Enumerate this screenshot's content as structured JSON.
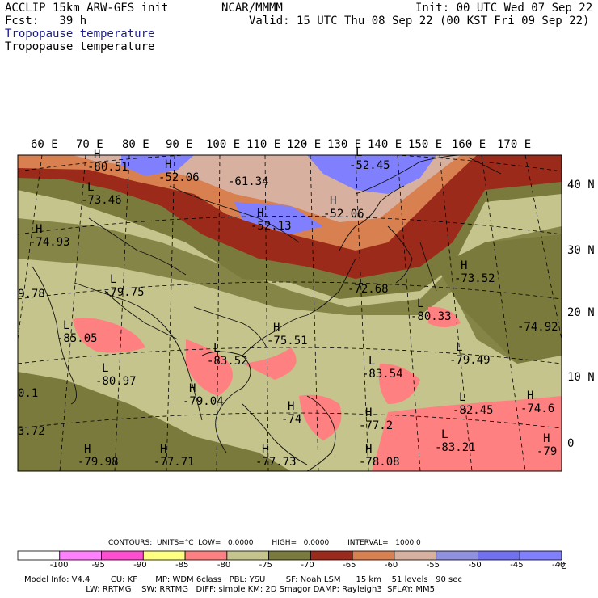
{
  "header": {
    "line1_left": "ACCLIP 15km ARW-GFS init",
    "line1_mid": "NCAR/MMMM",
    "line1_right": "Init: 00 UTC Wed 07 Sep 22",
    "line2_left": "Fcst:   39 h",
    "line2_right": "Valid: 15 UTC Thu 08 Sep 22 (00 KST Fri 09 Sep 22)",
    "title_blue": "Tropopause temperature",
    "title_black": "Tropopause temperature"
  },
  "map": {
    "lon_labels": [
      "60 E",
      "70 E",
      "80 E",
      "90 E",
      "100 E",
      "110 E",
      "120 E",
      "130 E",
      "140 E",
      "150 E",
      "160 E",
      "170 E"
    ],
    "lat_labels": [
      "40 N",
      "30 N",
      "20 N",
      "10 N",
      "0"
    ],
    "pressure_labels": [
      {
        "kind": "H",
        "value": "-80.51"
      },
      {
        "kind": "H",
        "value": "-52.06"
      },
      {
        "kind": "",
        "value": "-61.34"
      },
      {
        "kind": "L",
        "value": "-52.45"
      },
      {
        "kind": "L",
        "value": "-73.46"
      },
      {
        "kind": "H",
        "value": "-52.06"
      },
      {
        "kind": "H",
        "value": "-52.13"
      },
      {
        "kind": "H",
        "value": "-74.93"
      },
      {
        "kind": "",
        "value": "9.78"
      },
      {
        "kind": "L",
        "value": "-79.75"
      },
      {
        "kind": "H",
        "value": "-73.52"
      },
      {
        "kind": "",
        "value": "-72.68"
      },
      {
        "kind": "L",
        "value": "-80.33"
      },
      {
        "kind": "",
        "value": "-74.92"
      },
      {
        "kind": "L",
        "value": "-85.05"
      },
      {
        "kind": "H",
        "value": "-75.51"
      },
      {
        "kind": "L",
        "value": "-79.49"
      },
      {
        "kind": "L",
        "value": "-83.52"
      },
      {
        "kind": "L",
        "value": "-83.54"
      },
      {
        "kind": "",
        "value": "0.1"
      },
      {
        "kind": "L",
        "value": "-80.97"
      },
      {
        "kind": "L",
        "value": "-82.45"
      },
      {
        "kind": "H",
        "value": "-74.6"
      },
      {
        "kind": "H",
        "value": "-79.04"
      },
      {
        "kind": "",
        "value": "3.72"
      },
      {
        "kind": "H",
        "value": "-74"
      },
      {
        "kind": "H",
        "value": "-77.2"
      },
      {
        "kind": "L",
        "value": "-83.21"
      },
      {
        "kind": "H",
        "value": "-79"
      },
      {
        "kind": "H",
        "value": "-79.98"
      },
      {
        "kind": "H",
        "value": "-77.71"
      },
      {
        "kind": "H",
        "value": "-77.73"
      },
      {
        "kind": "H",
        "value": "-78.08"
      }
    ]
  },
  "contours": {
    "text": "CONTOURS:  UNITS=°C  LOW=   0.0000        HIGH=   0.0000        INTERVAL=   1000.0"
  },
  "colorbar": {
    "unit": "°C",
    "bins": [
      {
        "color": "#ffffff"
      },
      {
        "color": "#ff80ff"
      },
      {
        "color": "#ff4dd2"
      },
      {
        "color": "#ffff80"
      },
      {
        "color": "#ff8080"
      },
      {
        "color": "#c4c48c"
      },
      {
        "color": "#7a7a3c"
      },
      {
        "color": "#9c2a1a"
      },
      {
        "color": "#d98050"
      },
      {
        "color": "#d8b0a0"
      },
      {
        "color": "#9090e0"
      },
      {
        "color": "#7070f0"
      },
      {
        "color": "#8080ff"
      }
    ],
    "ticks": [
      "-100",
      "-95",
      "-90",
      "-85",
      "-80",
      "-75",
      "-70",
      "-65",
      "-60",
      "-55",
      "-50",
      "-45",
      "-40"
    ]
  },
  "footer": {
    "line1": "Model Info: V4.4        CU: KF       MP: WDM 6class   PBL: YSU        SF: Noah LSM      15 km    51 levels   90 sec",
    "line2": "                        LW: RRTMG    SW: RRTMG   DIFF: simple KM: 2D Smagor DAMP: Rayleigh3  SFLAY: MM5"
  }
}
